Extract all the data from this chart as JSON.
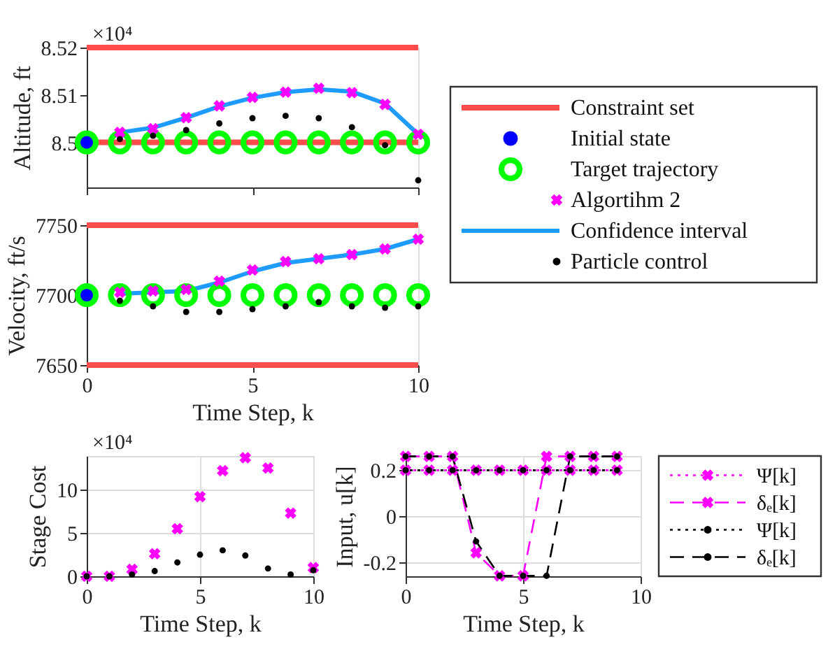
{
  "chart_data": [
    {
      "type": "scatter",
      "ylabel": "Altitude, ft",
      "x": [
        0,
        1,
        2,
        3,
        4,
        5,
        6,
        7,
        8,
        9,
        10
      ],
      "xlim": [
        0,
        10
      ],
      "xticks": [
        0,
        5,
        10
      ],
      "ylim": [
        8.4905,
        8.52
      ],
      "yticks": [
        8.5,
        8.51,
        8.52
      ],
      "tick_labels": "y",
      "grid": false,
      "legend": "right",
      "annotations": [
        "×10⁴"
      ],
      "ref_lines": [
        {
          "axis": "y",
          "value": 8.5,
          "label": "Constraint set",
          "color": "#ff4d4d"
        },
        {
          "axis": "y",
          "value": 8.52,
          "color": "#ff4d4d"
        }
      ],
      "series": [
        {
          "name": "Initial state",
          "color": "#0000ff",
          "marker": "circle",
          "x": [
            0
          ],
          "values": [
            8.5
          ]
        },
        {
          "name": "Target trajectory",
          "color": "#00ff00",
          "marker": "circle",
          "values": [
            8.5,
            8.5,
            8.5,
            8.5,
            8.5,
            8.5,
            8.5,
            8.5,
            8.5,
            8.5,
            8.5
          ]
        },
        {
          "name": "Algortihm 2",
          "color": "#ff00ff",
          "marker": "cross",
          "x": [
            1,
            2,
            3,
            4,
            5,
            6,
            7,
            8,
            9,
            10
          ],
          "values": [
            8.5021,
            8.5029,
            8.5052,
            8.5077,
            8.5095,
            8.5106,
            8.5114,
            8.5105,
            8.508,
            8.5017
          ]
        },
        {
          "name": "Confidence interval",
          "type": "line",
          "color": "#1e9bff",
          "marker": "none",
          "x": [
            1,
            2,
            3,
            4,
            5,
            6,
            7,
            8,
            9,
            10
          ],
          "values": [
            8.5021,
            8.5031,
            8.5052,
            8.5076,
            8.5094,
            8.5106,
            8.5112,
            8.5107,
            8.5082,
            8.5017
          ]
        },
        {
          "name": "Particle control",
          "color": "#000000",
          "marker": "circle",
          "x": [
            1,
            2,
            3,
            4,
            5,
            6,
            7,
            8,
            9,
            10
          ],
          "values": [
            8.5007,
            8.5014,
            8.5026,
            8.504,
            8.5051,
            8.5056,
            8.5051,
            8.5032,
            8.4994,
            8.492
          ]
        }
      ]
    },
    {
      "type": "scatter",
      "ylabel": "Velocity, ft/s",
      "xlabel": "Time Step, k",
      "x": [
        0,
        1,
        2,
        3,
        4,
        5,
        6,
        7,
        8,
        9,
        10
      ],
      "xlim": [
        0,
        10
      ],
      "xticks": [
        0,
        5,
        10
      ],
      "ylim": [
        7650,
        7750
      ],
      "yticks": [
        7650,
        7700,
        7750
      ],
      "grid": false,
      "ref_lines": [
        {
          "axis": "y",
          "value": 7650,
          "color": "#ff4d4d"
        },
        {
          "axis": "y",
          "value": 7750,
          "color": "#ff4d4d"
        }
      ],
      "series": [
        {
          "color": "#0000ff",
          "marker": "circle",
          "x": [
            0
          ],
          "values": [
            7700
          ]
        },
        {
          "color": "#00ff00",
          "marker": "circle",
          "values": [
            7700,
            7700,
            7700,
            7700,
            7700,
            7700,
            7700,
            7700,
            7700,
            7700,
            7700
          ]
        },
        {
          "color": "#ff00ff",
          "marker": "cross",
          "x": [
            1,
            2,
            3,
            4,
            5,
            6,
            7,
            8,
            9,
            10
          ],
          "values": [
            7702,
            7703,
            7704,
            7710,
            7718,
            7724,
            7726,
            7729,
            7733,
            7740
          ]
        },
        {
          "type": "line",
          "color": "#1e9bff",
          "marker": "none",
          "x": [
            1,
            2,
            3,
            4,
            5,
            6,
            7,
            8,
            9,
            10
          ],
          "values": [
            7701,
            7702,
            7703,
            7709,
            7717,
            7723,
            7726,
            7729,
            7733,
            7740
          ]
        },
        {
          "color": "#000000",
          "marker": "circle",
          "x": [
            1,
            2,
            3,
            4,
            5,
            6,
            7,
            8,
            9,
            10
          ],
          "values": [
            7696,
            7692,
            7688,
            7688,
            7690,
            7692,
            7695,
            7692,
            7691,
            7692
          ]
        }
      ]
    },
    {
      "type": "scatter",
      "ylabel": "Stage Cost",
      "xlabel": "Time Step, k",
      "x": [
        0,
        1,
        2,
        3,
        4,
        5,
        6,
        7,
        8,
        9,
        10
      ],
      "xlim": [
        0,
        10
      ],
      "xticks": [
        0,
        5,
        10
      ],
      "ylim": [
        0,
        13.9
      ],
      "yticks": [
        0,
        5,
        10
      ],
      "grid": true,
      "annotations": [
        "×10⁴"
      ],
      "series": [
        {
          "color": "#ff00ff",
          "marker": "cross",
          "values": [
            0,
            0,
            0.8,
            2.6,
            5.5,
            9.2,
            12.2,
            13.7,
            12.5,
            7.3,
            1.0
          ]
        },
        {
          "color": "#000000",
          "marker": "circle",
          "values": [
            0,
            0,
            0.2,
            0.6,
            1.6,
            2.5,
            3.0,
            2.4,
            0.9,
            0.2,
            0.7
          ]
        }
      ]
    },
    {
      "type": "line",
      "ylabel": "Input, u[k]",
      "xlabel": "Time Step, k",
      "x": [
        0,
        1,
        2,
        3,
        4,
        5,
        6,
        7,
        8,
        9
      ],
      "xlim": [
        0,
        10
      ],
      "xticks": [
        0,
        5,
        10
      ],
      "ylim": [
        -0.262,
        0.262
      ],
      "yticks": [
        -0.2,
        0,
        0.2
      ],
      "grid": true,
      "legend": "right",
      "series": [
        {
          "name": "Ψ[k]",
          "color": "#ff00ff",
          "marker": "cross",
          "line_style": "dotted",
          "values": [
            0.2,
            0.2,
            0.2,
            0.2,
            0.2,
            0.2,
            0.2,
            0.2,
            0.2,
            0.2
          ]
        },
        {
          "name": "δₑ[k]",
          "color": "#ff00ff",
          "marker": "cross",
          "line_style": "dashed",
          "values": [
            0.26,
            0.26,
            0.26,
            -0.16,
            -0.26,
            -0.26,
            0.26,
            0.26,
            0.26,
            0.26
          ]
        },
        {
          "name": "Ψ[k]",
          "color": "#000000",
          "marker": "circle",
          "line_style": "dotted",
          "values": [
            0.2,
            0.2,
            0.2,
            0.2,
            0.2,
            0.2,
            0.2,
            0.2,
            0.2,
            0.2
          ]
        },
        {
          "name": "δₑ[k]",
          "color": "#000000",
          "marker": "circle",
          "line_style": "dashed",
          "values": [
            0.26,
            0.26,
            0.26,
            -0.11,
            -0.26,
            -0.26,
            -0.26,
            0.26,
            0.26,
            0.26
          ]
        }
      ]
    }
  ]
}
